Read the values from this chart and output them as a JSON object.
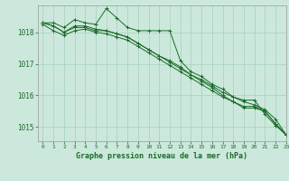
{
  "background_color": "#cce8dc",
  "grid_color": "#aad4c0",
  "line_color": "#1a6b2a",
  "title": "Graphe pression niveau de la mer (hPa)",
  "xlim": [
    -0.5,
    23
  ],
  "ylim": [
    1014.55,
    1018.85
  ],
  "yticks": [
    1015,
    1016,
    1017,
    1018
  ],
  "xticks": [
    0,
    1,
    2,
    3,
    4,
    5,
    6,
    7,
    8,
    9,
    10,
    11,
    12,
    13,
    14,
    15,
    16,
    17,
    18,
    19,
    20,
    21,
    22,
    23
  ],
  "series": [
    [
      1018.3,
      1018.3,
      1018.15,
      1018.4,
      1018.3,
      1018.25,
      1018.75,
      1018.45,
      1018.15,
      1018.05,
      1018.05,
      1018.05,
      1018.05,
      1017.1,
      1016.75,
      1016.6,
      1016.35,
      1016.2,
      1015.95,
      1015.85,
      1015.85,
      1015.4,
      1015.05,
      1014.75
    ],
    [
      1018.3,
      1018.2,
      1018.0,
      1018.2,
      1018.2,
      1018.1,
      1018.05,
      1017.95,
      1017.85,
      1017.65,
      1017.45,
      1017.25,
      1017.1,
      1016.9,
      1016.65,
      1016.5,
      1016.3,
      1016.1,
      1015.95,
      1015.8,
      1015.7,
      1015.55,
      1015.25,
      1014.75
    ],
    [
      1018.3,
      1018.2,
      1018.0,
      1018.15,
      1018.15,
      1018.05,
      1018.05,
      1017.95,
      1017.85,
      1017.65,
      1017.45,
      1017.25,
      1017.05,
      1016.85,
      1016.65,
      1016.45,
      1016.25,
      1016.0,
      1015.8,
      1015.6,
      1015.6,
      1015.5,
      1015.1,
      1014.75
    ],
    [
      1018.25,
      1018.05,
      1017.9,
      1018.05,
      1018.1,
      1018.0,
      1017.95,
      1017.85,
      1017.75,
      1017.55,
      1017.35,
      1017.15,
      1016.95,
      1016.75,
      1016.55,
      1016.35,
      1016.15,
      1015.95,
      1015.8,
      1015.65,
      1015.65,
      1015.5,
      1015.1,
      1014.75
    ]
  ]
}
